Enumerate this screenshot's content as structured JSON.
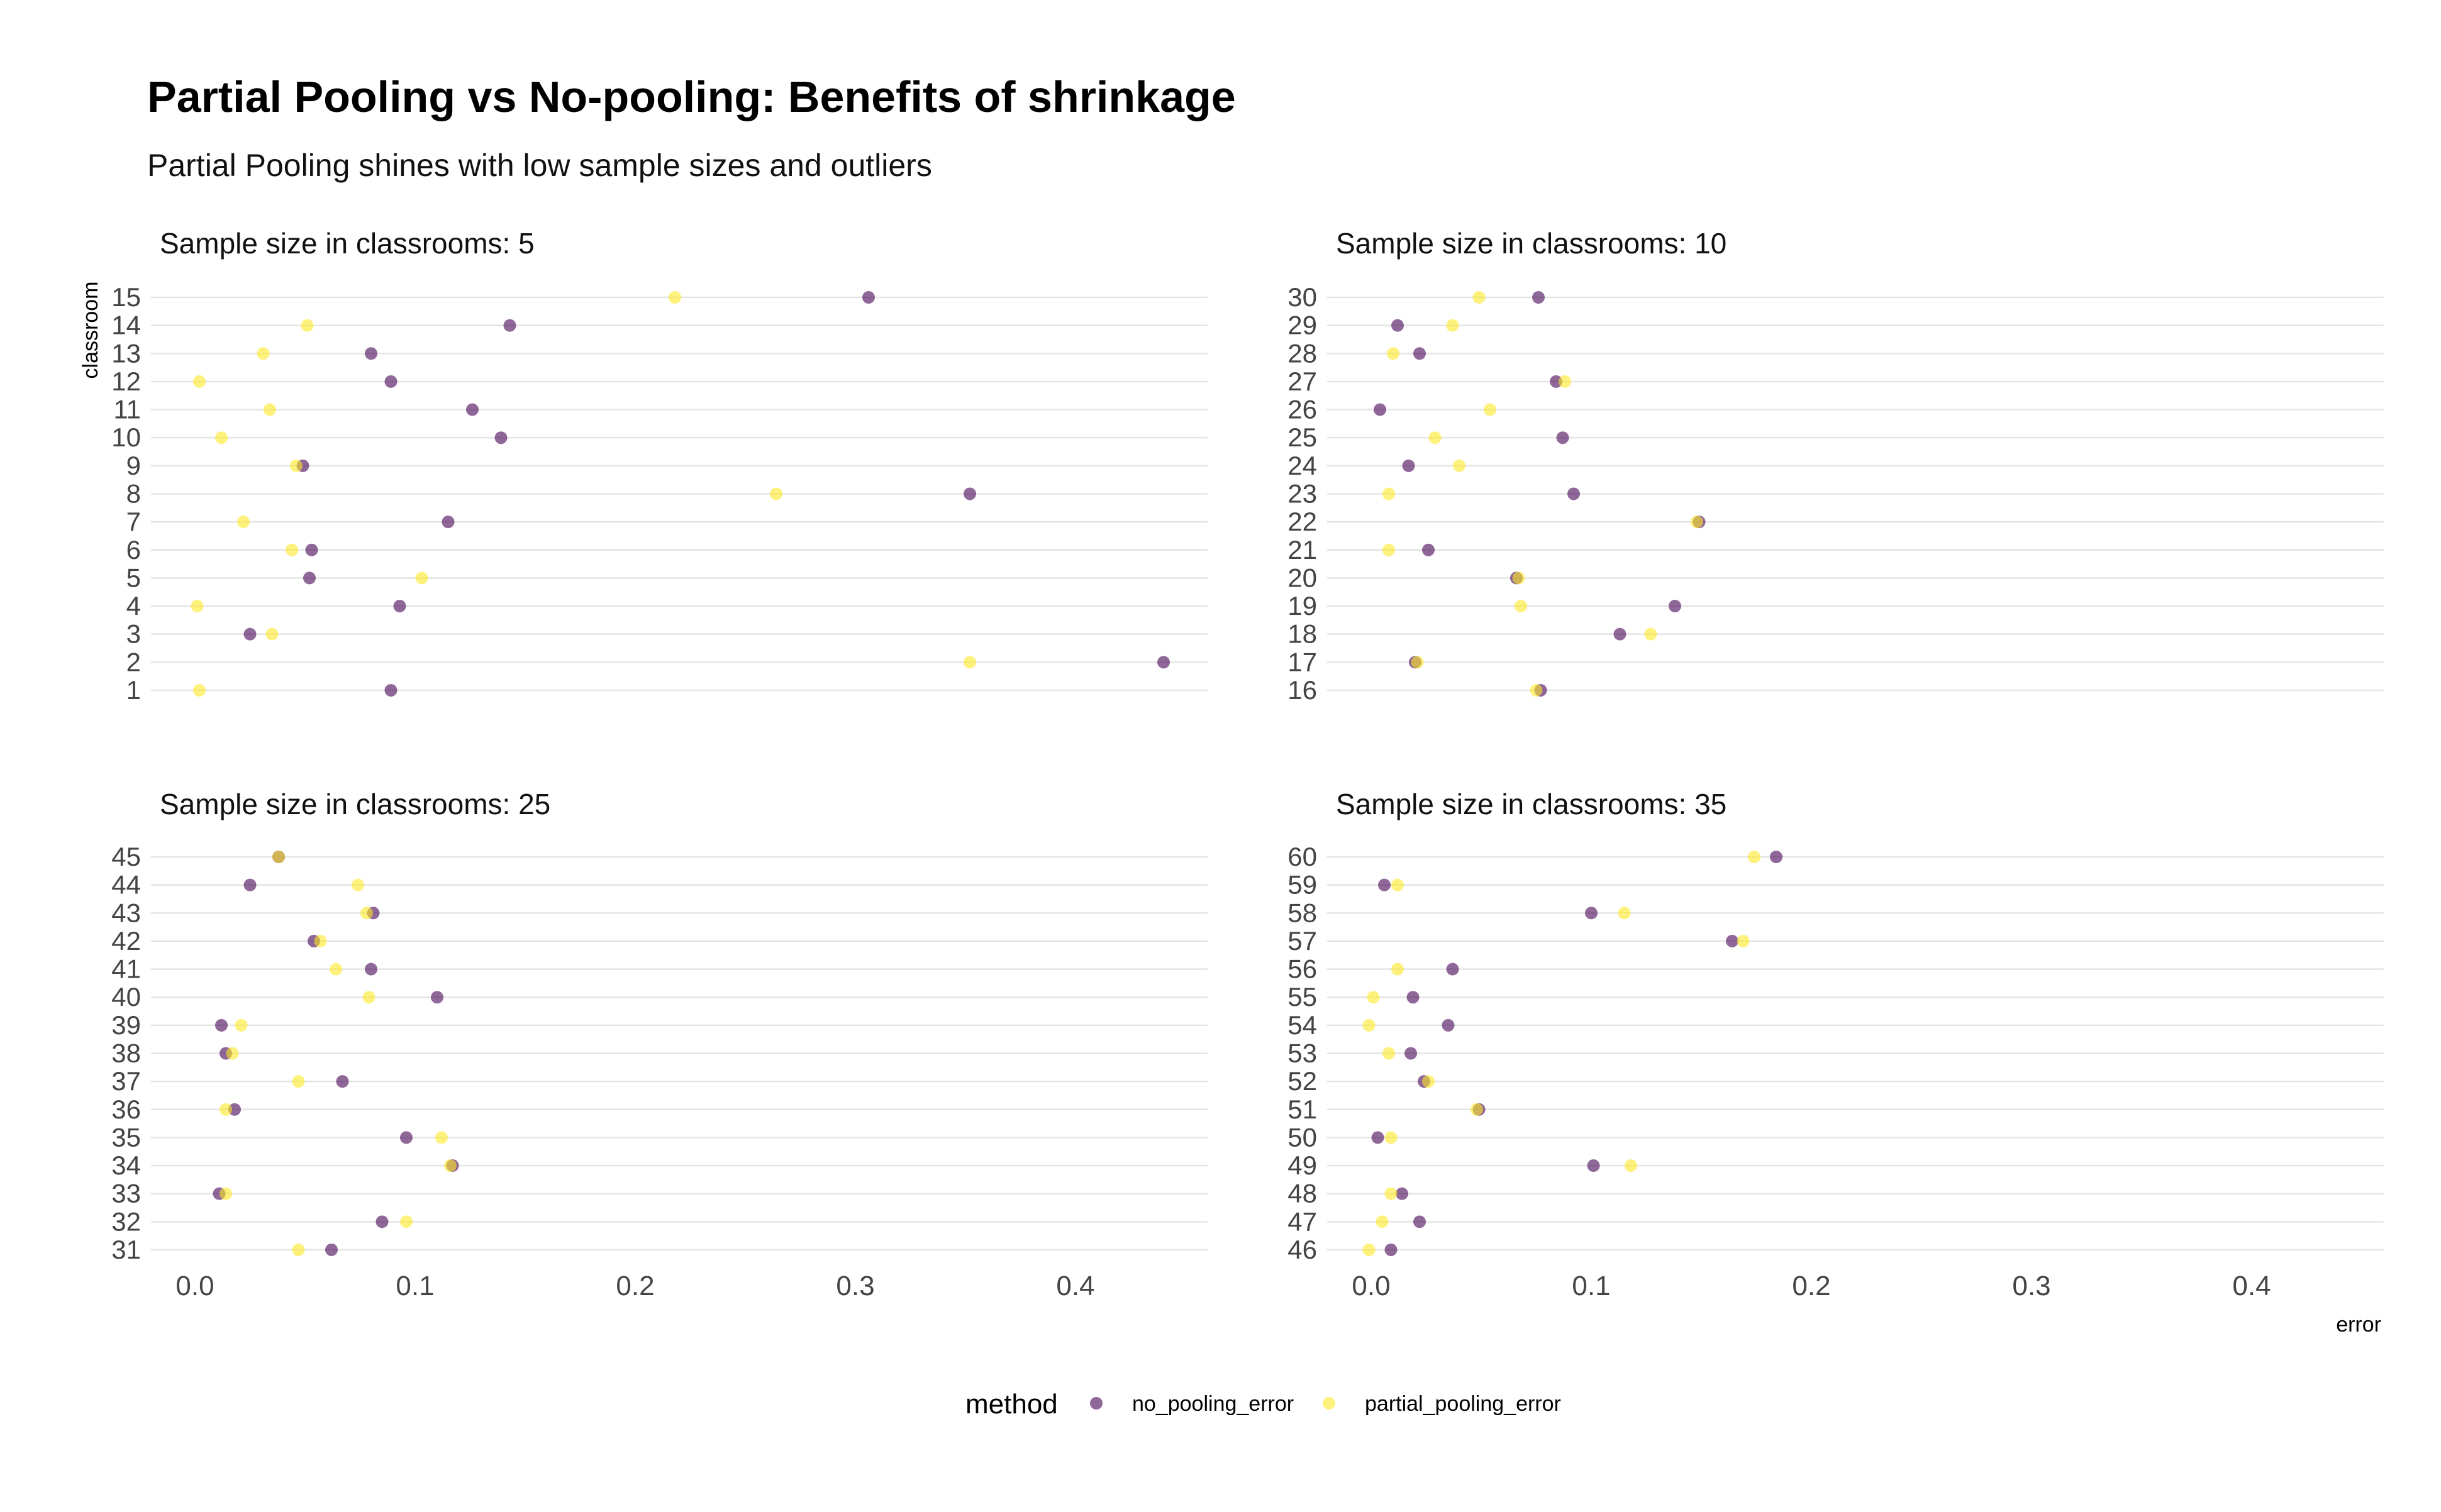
{
  "chart_data": {
    "type": "scatter",
    "title": "Partial Pooling vs No-pooling: Benefits of shrinkage",
    "subtitle": "Partial Pooling shines with low sample sizes and outliers",
    "xlabel": "error",
    "ylabel": "classroom",
    "xlim": [
      -0.02,
      0.46
    ],
    "xticks": [
      "0.0",
      "0.1",
      "0.2",
      "0.3",
      "0.4"
    ],
    "xtick_values": [
      0,
      0.1,
      0.2,
      0.3,
      0.4
    ],
    "grid": true,
    "legend": {
      "title": "method",
      "position": "bottom",
      "entries": [
        {
          "name": "no_pooling_error",
          "color": "#440154"
        },
        {
          "name": "partial_pooling_error",
          "color": "#FDE725"
        }
      ]
    },
    "series_colors": {
      "no_pooling_error": "#440154",
      "partial_pooling_error": "#FDE725"
    },
    "panels": [
      {
        "label": "Sample size in classrooms: 5",
        "classrooms": [
          "1",
          "2",
          "3",
          "4",
          "5",
          "6",
          "7",
          "8",
          "9",
          "10",
          "11",
          "12",
          "13",
          "14",
          "15"
        ],
        "series": [
          {
            "name": "no_pooling_error",
            "values": [
              0.089,
              0.44,
              0.025,
              0.093,
              0.052,
              0.053,
              0.115,
              0.352,
              0.049,
              0.139,
              0.126,
              0.089,
              0.08,
              0.143,
              0.306
            ]
          },
          {
            "name": "partial_pooling_error",
            "values": [
              0.002,
              0.352,
              0.035,
              0.001,
              0.103,
              0.044,
              0.022,
              0.264,
              0.046,
              0.012,
              0.034,
              0.002,
              0.031,
              0.051,
              0.218
            ]
          }
        ]
      },
      {
        "label": "Sample size in classrooms: 10",
        "classrooms": [
          "16",
          "17",
          "18",
          "19",
          "20",
          "21",
          "22",
          "23",
          "24",
          "25",
          "26",
          "27",
          "28",
          "29",
          "30"
        ],
        "series": [
          {
            "name": "no_pooling_error",
            "values": [
              0.077,
              0.02,
              0.113,
              0.138,
              0.066,
              0.026,
              0.149,
              0.092,
              0.017,
              0.087,
              0.004,
              0.084,
              0.022,
              0.012,
              0.076
            ]
          },
          {
            "name": "partial_pooling_error",
            "values": [
              0.075,
              0.021,
              0.127,
              0.068,
              0.067,
              0.008,
              0.148,
              0.008,
              0.04,
              0.029,
              0.054,
              0.088,
              0.01,
              0.037,
              0.049
            ]
          }
        ]
      },
      {
        "label": "Sample size in classrooms: 25",
        "classrooms": [
          "31",
          "32",
          "33",
          "34",
          "35",
          "36",
          "37",
          "38",
          "39",
          "40",
          "41",
          "42",
          "43",
          "44",
          "45"
        ],
        "series": [
          {
            "name": "no_pooling_error",
            "values": [
              0.062,
              0.085,
              0.011,
              0.117,
              0.096,
              0.018,
              0.067,
              0.014,
              0.012,
              0.11,
              0.08,
              0.054,
              0.081,
              0.025,
              0.038
            ]
          },
          {
            "name": "partial_pooling_error",
            "values": [
              0.047,
              0.096,
              0.014,
              0.116,
              0.112,
              0.014,
              0.047,
              0.017,
              0.021,
              0.079,
              0.064,
              0.057,
              0.078,
              0.074,
              0.038
            ]
          }
        ]
      },
      {
        "label": "Sample size in classrooms: 35",
        "classrooms": [
          "46",
          "47",
          "48",
          "49",
          "50",
          "51",
          "52",
          "53",
          "54",
          "55",
          "56",
          "57",
          "58",
          "59",
          "60"
        ],
        "series": [
          {
            "name": "no_pooling_error",
            "values": [
              0.009,
              0.022,
              0.014,
              0.101,
              0.003,
              0.049,
              0.024,
              0.018,
              0.035,
              0.019,
              0.037,
              0.164,
              0.1,
              0.006,
              0.184
            ]
          },
          {
            "name": "partial_pooling_error",
            "values": [
              -0.001,
              0.005,
              0.009,
              0.118,
              0.009,
              0.048,
              0.026,
              0.008,
              -0.001,
              0.001,
              0.012,
              0.169,
              0.115,
              0.012,
              0.174
            ]
          }
        ]
      }
    ]
  }
}
